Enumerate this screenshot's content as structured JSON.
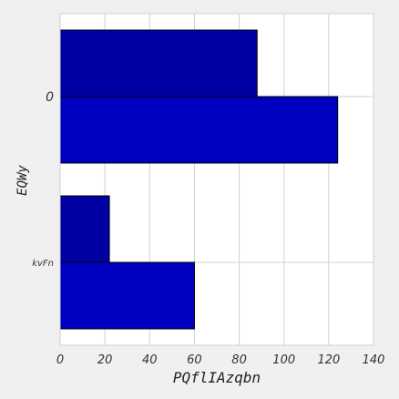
{
  "chart_data": {
    "type": "bar",
    "orientation": "horizontal",
    "categories": [
      "0",
      "kvFn"
    ],
    "series": [
      {
        "values": [
          88,
          22
        ],
        "color": "#0000a3"
      },
      {
        "values": [
          124,
          60
        ],
        "color": "#0000c0"
      }
    ],
    "title": "",
    "xlabel": "PQflIAzqbn",
    "ylabel": "EQWy",
    "xlim": [
      0,
      140
    ],
    "xticks": [
      0,
      20,
      40,
      60,
      80,
      100,
      120,
      140
    ],
    "grid": true
  },
  "colors": {
    "background": "#f0f0f0",
    "plot_area": "#ffffff",
    "grid": "#d0d0d0",
    "bar_edge": "#000000"
  }
}
